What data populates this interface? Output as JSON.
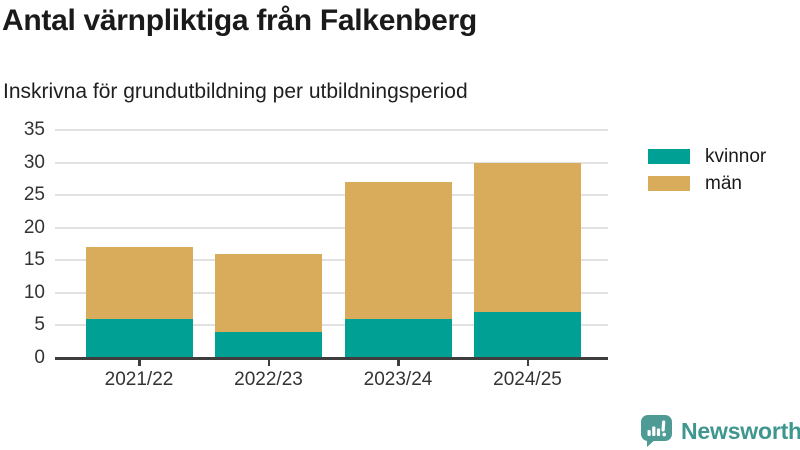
{
  "header": {
    "title": "Antal värnpliktiga från Falkenberg",
    "subtitle": "Inskrivna för grundutbildning per utbildningsperiod"
  },
  "chart_data": {
    "type": "bar",
    "stacked": true,
    "title": "Antal värnpliktiga från Falkenberg",
    "subtitle": "Inskrivna för grundutbildning per utbildningsperiod",
    "categories": [
      "2021/22",
      "2022/23",
      "2023/24",
      "2024/25"
    ],
    "series": [
      {
        "name": "kvinnor",
        "color": "#00a094",
        "values": [
          6,
          4,
          6,
          7
        ]
      },
      {
        "name": "män",
        "color": "#d9ac5c",
        "values": [
          11,
          12,
          21,
          23
        ]
      }
    ],
    "totals": [
      17,
      16,
      27,
      30
    ],
    "xlabel": "",
    "ylabel": "",
    "ylim": [
      0,
      35
    ],
    "ytick_step": 5,
    "yticks": [
      0,
      5,
      10,
      15,
      20,
      25,
      30,
      35
    ],
    "grid": true,
    "legend_position": "right"
  },
  "colors": {
    "kvinnor": "#00a094",
    "man": "#d9ac5c",
    "axis": "#3d3d3d",
    "gridline": "#e1e1e1",
    "text": "#1a1a1a",
    "brand_teal": "#3f968f",
    "logo_bubble": "#4d9b94"
  },
  "footer": {
    "brand": "Newsworthy",
    "logo_icon": "speech-bubble-bar-chart-icon"
  }
}
